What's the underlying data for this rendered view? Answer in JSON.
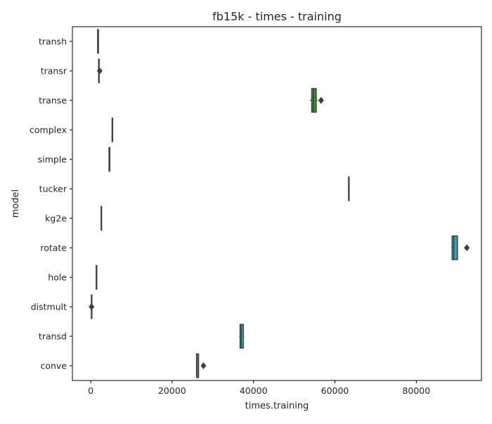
{
  "chart_data": {
    "type": "boxplot",
    "orientation": "horizontal",
    "title": "fb15k - times - training",
    "xlabel": "times.training",
    "ylabel": "model",
    "xlim": [
      -4500,
      96000
    ],
    "xticks": [
      0,
      20000,
      40000,
      60000,
      80000
    ],
    "xtick_labels": [
      "0",
      "20000",
      "40000",
      "60000",
      "80000"
    ],
    "grid": false,
    "categories": [
      "transh",
      "transr",
      "transe",
      "complex",
      "simple",
      "tucker",
      "kg2e",
      "rotate",
      "hole",
      "distmult",
      "transd",
      "conve"
    ],
    "boxes": [
      {
        "label": "transh",
        "whislo": 1600,
        "q1": 1700,
        "med": 1800,
        "q3": 1900,
        "whishi": 2000,
        "fliers": [],
        "color": "#3274a1"
      },
      {
        "label": "transr",
        "whislo": 1900,
        "q1": 1950,
        "med": 2000,
        "q3": 2050,
        "whishi": 2100,
        "fliers": [
          2200
        ],
        "color": "#e1812c"
      },
      {
        "label": "transe",
        "whislo": 53900,
        "q1": 54300,
        "med": 54700,
        "q3": 55400,
        "whishi": 55700,
        "fliers": [
          56600
        ],
        "color": "#3a923a"
      },
      {
        "label": "complex",
        "whislo": 5200,
        "q1": 5250,
        "med": 5300,
        "q3": 5350,
        "whishi": 5400,
        "fliers": [],
        "color": "#c03d3e"
      },
      {
        "label": "simple",
        "whislo": 4400,
        "q1": 4500,
        "med": 4600,
        "q3": 4700,
        "whishi": 4800,
        "fliers": [],
        "color": "#9372b2"
      },
      {
        "label": "tucker",
        "whislo": 63300,
        "q1": 63350,
        "med": 63400,
        "q3": 63450,
        "whishi": 63500,
        "fliers": [],
        "color": "#845b53"
      },
      {
        "label": "kg2e",
        "whislo": 2500,
        "q1": 2550,
        "med": 2600,
        "q3": 2650,
        "whishi": 2700,
        "fliers": [],
        "color": "#d684bd"
      },
      {
        "label": "rotate",
        "whislo": 88600,
        "q1": 88800,
        "med": 89200,
        "q3": 90100,
        "whishi": 90200,
        "fliers": [
          92400
        ],
        "color": "#3d9fb8"
      },
      {
        "label": "hole",
        "whislo": 1300,
        "q1": 1350,
        "med": 1400,
        "q3": 1450,
        "whishi": 1500,
        "fliers": [],
        "color": "#7f7f7f"
      },
      {
        "label": "distmult",
        "whislo": 100,
        "q1": 150,
        "med": 200,
        "q3": 250,
        "whishi": 300,
        "fliers": [
          200
        ],
        "color": "#a9aa35"
      },
      {
        "label": "transd",
        "whislo": 36500,
        "q1": 36700,
        "med": 37000,
        "q3": 37500,
        "whishi": 37700,
        "fliers": [],
        "color": "#2fbccd"
      },
      {
        "label": "conve",
        "whislo": 25900,
        "q1": 26000,
        "med": 26100,
        "q3": 26500,
        "whishi": 26600,
        "fliers": [
          27700
        ],
        "color": "#d65ea1"
      }
    ]
  }
}
